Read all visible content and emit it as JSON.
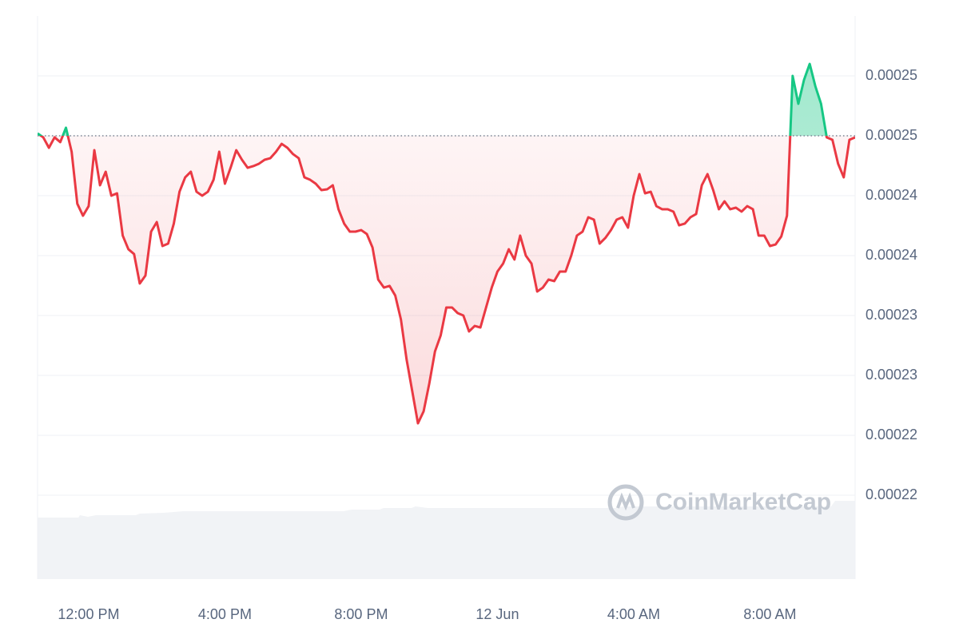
{
  "chart_data": {
    "type": "line",
    "watermark": "CoinMarketCap",
    "up_color": "#16c784",
    "down_color": "#ea3943",
    "reference_value": 0.0002495,
    "grid": true,
    "ylim": [
      0.0002125,
      0.0002595
    ],
    "yticks": [
      {
        "value": 0.0002545,
        "label": "0.00025"
      },
      {
        "value": 0.0002495,
        "label": "0.00025"
      },
      {
        "value": 0.0002445,
        "label": "0.00024"
      },
      {
        "value": 0.0002395,
        "label": "0.00024"
      },
      {
        "value": 0.0002345,
        "label": "0.00023"
      },
      {
        "value": 0.0002295,
        "label": "0.00023"
      },
      {
        "value": 0.0002245,
        "label": "0.00022"
      },
      {
        "value": 0.0002195,
        "label": "0.00022"
      }
    ],
    "categories": [
      null,
      null,
      null,
      null,
      null,
      null,
      null,
      null,
      null,
      "12:00 PM",
      null,
      null,
      null,
      null,
      null,
      null,
      null,
      null,
      null,
      null,
      null,
      null,
      null,
      null,
      null,
      null,
      null,
      null,
      null,
      null,
      null,
      null,
      null,
      "4:00 PM",
      null,
      null,
      null,
      null,
      null,
      null,
      null,
      null,
      null,
      null,
      null,
      null,
      null,
      null,
      null,
      null,
      null,
      null,
      null,
      null,
      null,
      null,
      null,
      "8:00 PM",
      null,
      null,
      null,
      null,
      null,
      null,
      null,
      null,
      null,
      null,
      null,
      null,
      null,
      null,
      null,
      null,
      null,
      null,
      null,
      null,
      null,
      null,
      null,
      "12 Jun",
      null,
      null,
      null,
      null,
      null,
      null,
      null,
      null,
      null,
      null,
      null,
      null,
      null,
      null,
      null,
      null,
      null,
      null,
      null,
      null,
      null,
      null,
      null,
      "4:00 AM",
      null,
      null,
      null,
      null,
      null,
      null,
      null,
      null,
      null,
      null,
      null,
      null,
      null,
      null,
      null,
      null,
      null,
      null,
      null,
      null,
      null,
      null,
      null,
      "8:00 AM",
      null,
      null,
      null,
      null,
      null,
      null,
      null,
      null,
      null,
      null,
      null,
      null,
      null,
      null,
      null
    ],
    "series": [
      {
        "values": [
          0.0002497,
          0.00024937,
          0.0002485,
          0.00024937,
          0.00024897,
          0.00025017,
          0.00024817,
          0.00024383,
          0.00024283,
          0.00024363,
          0.0002483,
          0.00024537,
          0.0002465,
          0.0002445,
          0.0002447,
          0.00024117,
          0.00024003,
          0.00023963,
          0.00023717,
          0.00023783,
          0.0002415,
          0.0002423,
          0.0002403,
          0.0002405,
          0.00024217,
          0.00024483,
          0.00024603,
          0.0002465,
          0.00024483,
          0.0002445,
          0.00024483,
          0.00024583,
          0.00024817,
          0.0002455,
          0.00024683,
          0.0002483,
          0.0002475,
          0.00024683,
          0.00024697,
          0.00024717,
          0.0002475,
          0.00024763,
          0.00024817,
          0.00024883,
          0.0002485,
          0.00024797,
          0.00024763,
          0.00024603,
          0.00024583,
          0.0002455,
          0.00024497,
          0.00024503,
          0.00024537,
          0.00024337,
          0.00024217,
          0.0002415,
          0.0002415,
          0.00024163,
          0.0002413,
          0.00024017,
          0.0002375,
          0.00023683,
          0.00023697,
          0.00023617,
          0.00023417,
          0.00023083,
          0.00022817,
          0.0002255,
          0.0002265,
          0.00022883,
          0.0002315,
          0.00023283,
          0.00023517,
          0.00023517,
          0.0002347,
          0.0002345,
          0.00023317,
          0.00023363,
          0.0002335,
          0.00023517,
          0.00023683,
          0.00023817,
          0.00023883,
          0.00024003,
          0.00023917,
          0.00024117,
          0.0002395,
          0.00023883,
          0.0002365,
          0.00023683,
          0.0002375,
          0.00023737,
          0.00023817,
          0.00023817,
          0.0002395,
          0.00024117,
          0.0002415,
          0.0002427,
          0.0002425,
          0.0002405,
          0.00024097,
          0.00024163,
          0.0002425,
          0.0002427,
          0.00024183,
          0.0002445,
          0.0002463,
          0.0002447,
          0.00024483,
          0.00024363,
          0.00024337,
          0.00024337,
          0.00024317,
          0.00024203,
          0.00024217,
          0.0002427,
          0.00024297,
          0.00024537,
          0.0002463,
          0.00024497,
          0.00024337,
          0.00024403,
          0.00024337,
          0.0002435,
          0.00024317,
          0.00024363,
          0.00024337,
          0.00024117,
          0.00024117,
          0.0002403,
          0.00024043,
          0.0002411,
          0.00024283,
          0.0002545,
          0.00025217,
          0.00025417,
          0.0002555,
          0.00025363,
          0.00025217,
          0.00024937,
          0.00024917,
          0.00024717,
          0.00024603,
          0.00024917,
          0.00024937
        ]
      }
    ]
  }
}
